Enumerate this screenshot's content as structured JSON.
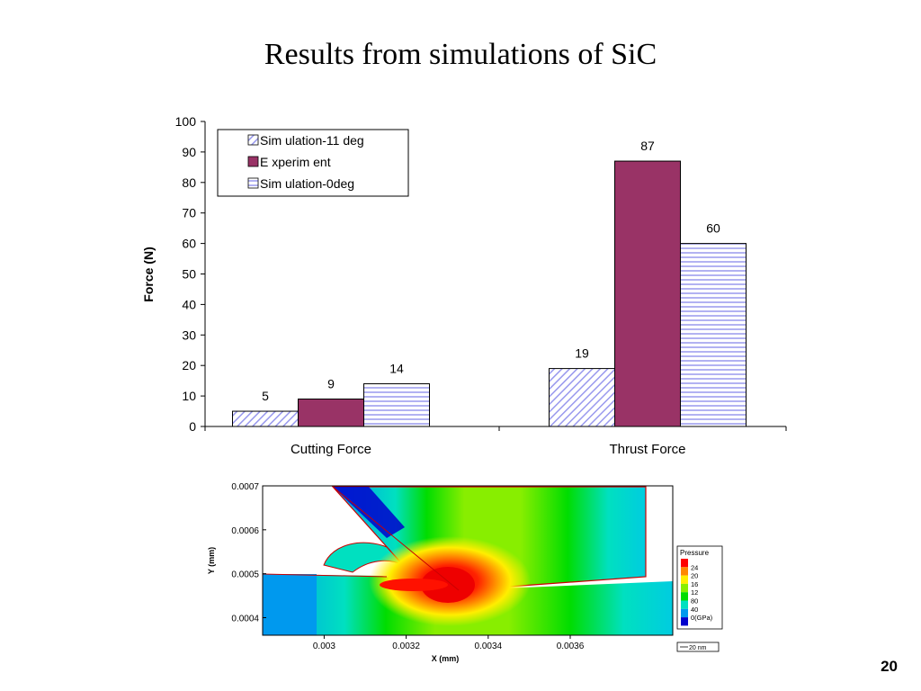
{
  "title": "Results from simulations of SiC",
  "page_number": "20",
  "chart_data": [
    {
      "type": "bar",
      "title": "",
      "categories": [
        "Cutting Force",
        "Thrust Force"
      ],
      "series": [
        {
          "name": "Sim ulation-11 deg",
          "values": [
            5,
            19
          ],
          "color": "#9999ee",
          "pattern": "diagonal-hatch"
        },
        {
          "name": "E xperim ent",
          "values": [
            9,
            87
          ],
          "color": "#993366",
          "pattern": "solid"
        },
        {
          "name": "Sim ulation-0deg",
          "values": [
            14,
            60
          ],
          "color": "#9999ee",
          "pattern": "horizontal-stripes"
        }
      ],
      "xlabel": "",
      "ylabel": "Force (N)",
      "ylim": [
        0,
        100
      ],
      "yticks": [
        0,
        10,
        20,
        30,
        40,
        50,
        60,
        70,
        80,
        90,
        100
      ],
      "legend_position": "top-left",
      "data_labels": true,
      "grid": false
    },
    {
      "type": "heatmap",
      "title": "",
      "xlabel": "X (mm)",
      "ylabel": "Y (mm)",
      "xticks": [
        "0.003",
        "0.0032",
        "0.0034",
        "0.0036"
      ],
      "yticks": [
        "0.0004",
        "0.0005",
        "0.0006",
        "0.0007"
      ],
      "xlim": [
        0.00285,
        0.00385
      ],
      "ylim": [
        0.00036,
        0.0007
      ],
      "colorbar": {
        "title": "Pressure",
        "levels": [
          "24",
          "20",
          "16",
          "12",
          "80",
          "40",
          "0(GPa)"
        ],
        "colors": [
          "#ff0000",
          "#ff8800",
          "#ffee00",
          "#88ee00",
          "#00dd00",
          "#00e0c0",
          "#0099ee",
          "#0000cc"
        ]
      },
      "scale_bar": "20 nm"
    }
  ]
}
